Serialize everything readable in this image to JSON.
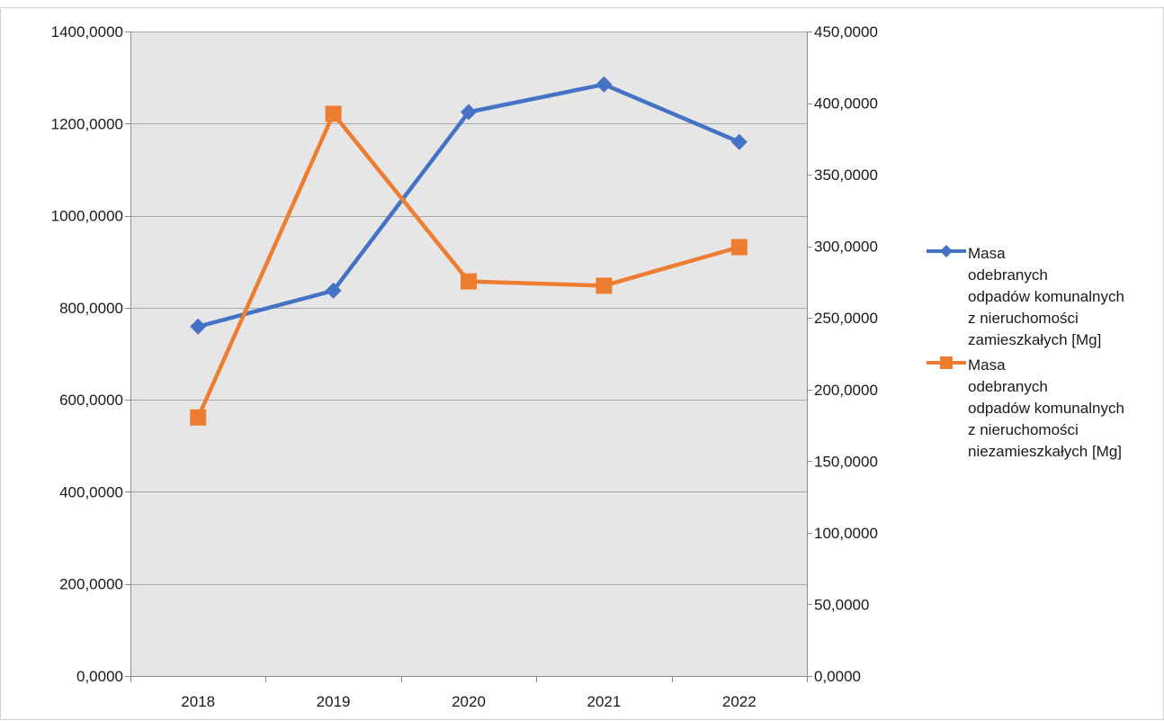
{
  "chart_data": {
    "type": "line",
    "title": "",
    "xlabel": "",
    "ylabel": "",
    "categories": [
      "2018",
      "2019",
      "2020",
      "2021",
      "2022"
    ],
    "y_left": {
      "range": [
        0,
        1400
      ],
      "ticks": [
        0,
        200,
        400,
        600,
        800,
        1000,
        1200,
        1400
      ],
      "tick_labels": [
        "0,0000",
        "200,0000",
        "400,0000",
        "600,0000",
        "800,0000",
        "1000,0000",
        "1200,0000",
        "1400,0000"
      ]
    },
    "y_right": {
      "range": [
        0,
        450
      ],
      "ticks": [
        0,
        50,
        100,
        150,
        200,
        250,
        300,
        350,
        400,
        450
      ],
      "tick_labels": [
        "0,0000",
        "50,0000",
        "100,0000",
        "150,0000",
        "200,0000",
        "250,0000",
        "300,0000",
        "350,0000",
        "400,0000",
        "450,0000"
      ]
    },
    "series": [
      {
        "name": "Masa\nodebranych\nodpadów komunalnych\nz nieruchomości\nzamieszkałych [Mg]",
        "axis": "left",
        "marker": "diamond",
        "color": "#4472C4",
        "values": [
          759,
          837,
          1225,
          1285,
          1160
        ]
      },
      {
        "name": "Masa\nodebranych\nodpadów komunalnych\nz nieruchomości\nniezamieszkałych [Mg]",
        "axis": "right",
        "marker": "square",
        "color": "#ED7D31",
        "values": [
          180.5,
          392.5,
          275.5,
          272.5,
          299.5
        ]
      }
    ],
    "grid": true,
    "legend_position": "right",
    "plot_background": "#E7E6E6",
    "gridline_color": "#A6A6A6"
  }
}
